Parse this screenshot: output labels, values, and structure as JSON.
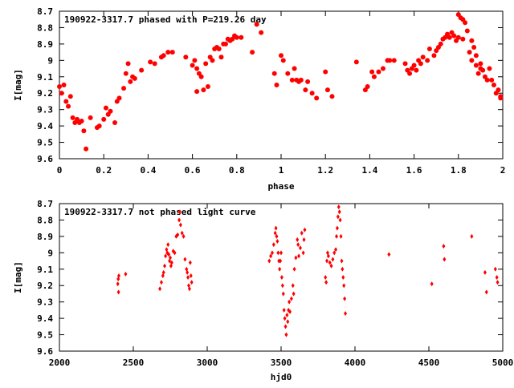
{
  "chart_data": [
    {
      "type": "scatter",
      "title": "190922-3317.7 phased with P=219.26 day",
      "xlabel": "phase",
      "ylabel": "I[mag]",
      "xlim": [
        0,
        2
      ],
      "ylim": [
        9.6,
        8.7
      ],
      "y_inverted": true,
      "xticks": [
        "0",
        "0.2",
        "0.4",
        "0.6",
        "0.8",
        "1",
        "1.2",
        "1.4",
        "1.6",
        "1.8",
        "2"
      ],
      "yticks": [
        "8.7",
        "8.8",
        "8.9",
        "9",
        "9.1",
        "9.2",
        "9.3",
        "9.4",
        "9.5",
        "9.6"
      ],
      "marker_color": "#ff0000",
      "points": [
        [
          0.0,
          9.16
        ],
        [
          0.01,
          9.2
        ],
        [
          0.02,
          9.15
        ],
        [
          0.03,
          9.25
        ],
        [
          0.04,
          9.28
        ],
        [
          0.05,
          9.22
        ],
        [
          0.06,
          9.35
        ],
        [
          0.07,
          9.38
        ],
        [
          0.08,
          9.36
        ],
        [
          0.09,
          9.38
        ],
        [
          0.1,
          9.37
        ],
        [
          0.11,
          9.43
        ],
        [
          0.12,
          9.54
        ],
        [
          0.14,
          9.35
        ],
        [
          0.17,
          9.41
        ],
        [
          0.18,
          9.4
        ],
        [
          0.2,
          9.36
        ],
        [
          0.21,
          9.29
        ],
        [
          0.22,
          9.33
        ],
        [
          0.23,
          9.31
        ],
        [
          0.25,
          9.38
        ],
        [
          0.26,
          9.25
        ],
        [
          0.27,
          9.23
        ],
        [
          0.29,
          9.17
        ],
        [
          0.3,
          9.08
        ],
        [
          0.31,
          9.02
        ],
        [
          0.32,
          9.13
        ],
        [
          0.33,
          9.1
        ],
        [
          0.34,
          9.11
        ],
        [
          0.37,
          9.06
        ],
        [
          0.41,
          9.01
        ],
        [
          0.43,
          9.02
        ],
        [
          0.46,
          8.98
        ],
        [
          0.47,
          8.97
        ],
        [
          0.49,
          8.95
        ],
        [
          0.51,
          8.95
        ],
        [
          0.57,
          8.98
        ],
        [
          0.6,
          9.03
        ],
        [
          0.61,
          9.0
        ],
        [
          0.62,
          9.05
        ],
        [
          0.63,
          9.08
        ],
        [
          0.64,
          9.1
        ],
        [
          0.62,
          9.19
        ],
        [
          0.65,
          9.18
        ],
        [
          0.66,
          9.02
        ],
        [
          0.67,
          9.16
        ],
        [
          0.68,
          8.98
        ],
        [
          0.69,
          9.0
        ],
        [
          0.7,
          8.93
        ],
        [
          0.71,
          8.92
        ],
        [
          0.72,
          8.93
        ],
        [
          0.73,
          8.98
        ],
        [
          0.74,
          8.9
        ],
        [
          0.75,
          8.9
        ],
        [
          0.76,
          8.87
        ],
        [
          0.77,
          8.88
        ],
        [
          0.78,
          8.87
        ],
        [
          0.79,
          8.85
        ],
        [
          0.8,
          8.86
        ],
        [
          0.82,
          8.86
        ],
        [
          0.87,
          8.95
        ],
        [
          0.89,
          8.78
        ],
        [
          0.91,
          8.83
        ],
        [
          0.97,
          9.08
        ],
        [
          0.98,
          9.15
        ],
        [
          1.0,
          8.97
        ],
        [
          1.01,
          9.0
        ],
        [
          1.03,
          9.08
        ],
        [
          1.05,
          9.12
        ],
        [
          1.06,
          9.05
        ],
        [
          1.07,
          9.12
        ],
        [
          1.08,
          9.13
        ],
        [
          1.09,
          9.12
        ],
        [
          1.11,
          9.18
        ],
        [
          1.12,
          9.13
        ],
        [
          1.14,
          9.2
        ],
        [
          1.16,
          9.23
        ],
        [
          1.2,
          9.07
        ],
        [
          1.21,
          9.18
        ],
        [
          1.23,
          9.22
        ],
        [
          1.34,
          9.01
        ],
        [
          1.38,
          9.18
        ],
        [
          1.39,
          9.16
        ],
        [
          1.41,
          9.07
        ],
        [
          1.42,
          9.1
        ],
        [
          1.44,
          9.07
        ],
        [
          1.46,
          9.05
        ],
        [
          1.48,
          9.0
        ],
        [
          1.49,
          9.0
        ],
        [
          1.51,
          9.0
        ],
        [
          1.56,
          9.02
        ],
        [
          1.57,
          9.06
        ],
        [
          1.58,
          9.08
        ],
        [
          1.59,
          9.05
        ],
        [
          1.6,
          9.03
        ],
        [
          1.61,
          9.06
        ],
        [
          1.62,
          9.0
        ],
        [
          1.63,
          9.02
        ],
        [
          1.64,
          8.98
        ],
        [
          1.66,
          9.0
        ],
        [
          1.67,
          8.93
        ],
        [
          1.69,
          8.97
        ],
        [
          1.7,
          8.94
        ],
        [
          1.71,
          8.92
        ],
        [
          1.72,
          8.9
        ],
        [
          1.73,
          8.87
        ],
        [
          1.74,
          8.86
        ],
        [
          1.75,
          8.84
        ],
        [
          1.76,
          8.86
        ],
        [
          1.77,
          8.83
        ],
        [
          1.78,
          8.85
        ],
        [
          1.79,
          8.88
        ],
        [
          1.8,
          8.72
        ],
        [
          1.81,
          8.74
        ],
        [
          1.82,
          8.75
        ],
        [
          1.83,
          8.77
        ],
        [
          1.84,
          8.82
        ],
        [
          1.8,
          8.86
        ],
        [
          1.82,
          8.87
        ],
        [
          1.85,
          8.95
        ],
        [
          1.86,
          8.88
        ],
        [
          1.86,
          9.0
        ],
        [
          1.87,
          8.92
        ],
        [
          1.88,
          9.03
        ],
        [
          1.88,
          8.97
        ],
        [
          1.89,
          9.08
        ],
        [
          1.9,
          9.02
        ],
        [
          1.9,
          9.05
        ],
        [
          1.91,
          9.06
        ],
        [
          1.92,
          9.1
        ],
        [
          1.93,
          9.12
        ],
        [
          1.94,
          9.05
        ],
        [
          1.95,
          9.12
        ],
        [
          1.96,
          9.15
        ],
        [
          1.97,
          9.2
        ],
        [
          1.98,
          9.18
        ],
        [
          1.99,
          9.22
        ],
        [
          1.99,
          9.23
        ]
      ]
    },
    {
      "type": "scatter",
      "title": "190922-3317.7 not phased light curve",
      "xlabel": "hjd0",
      "ylabel": "I[mag]",
      "xlim": [
        2000,
        5000
      ],
      "ylim": [
        9.6,
        8.7
      ],
      "y_inverted": true,
      "xticks": [
        "2000",
        "2500",
        "3000",
        "3500",
        "4000",
        "4500",
        "5000"
      ],
      "yticks": [
        "8.7",
        "8.8",
        "8.9",
        "9",
        "9.1",
        "9.2",
        "9.3",
        "9.4",
        "9.5",
        "9.6"
      ],
      "marker_color": "#ff0000",
      "points": [
        [
          2395,
          9.19
        ],
        [
          2398,
          9.16
        ],
        [
          2400,
          9.24
        ],
        [
          2402,
          9.14
        ],
        [
          2448,
          9.13
        ],
        [
          2680,
          9.22
        ],
        [
          2690,
          9.18
        ],
        [
          2700,
          9.14
        ],
        [
          2705,
          9.12
        ],
        [
          2712,
          9.08
        ],
        [
          2718,
          9.02
        ],
        [
          2725,
          8.98
        ],
        [
          2730,
          9.0
        ],
        [
          2735,
          8.95
        ],
        [
          2740,
          9.01
        ],
        [
          2745,
          9.05
        ],
        [
          2750,
          9.03
        ],
        [
          2755,
          9.08
        ],
        [
          2760,
          9.06
        ],
        [
          2770,
          8.99
        ],
        [
          2780,
          9.0
        ],
        [
          2790,
          8.9
        ],
        [
          2800,
          8.89
        ],
        [
          2810,
          8.8
        ],
        [
          2815,
          8.75
        ],
        [
          2820,
          8.83
        ],
        [
          2830,
          8.88
        ],
        [
          2840,
          8.9
        ],
        [
          2850,
          9.04
        ],
        [
          2860,
          9.1
        ],
        [
          2865,
          9.12
        ],
        [
          2870,
          9.15
        ],
        [
          2875,
          9.2
        ],
        [
          2880,
          9.22
        ],
        [
          2885,
          9.06
        ],
        [
          2890,
          9.14
        ],
        [
          2895,
          9.18
        ],
        [
          3420,
          9.05
        ],
        [
          3430,
          9.02
        ],
        [
          3440,
          9.0
        ],
        [
          3450,
          8.95
        ],
        [
          3460,
          8.88
        ],
        [
          3465,
          8.85
        ],
        [
          3470,
          8.9
        ],
        [
          3475,
          8.93
        ],
        [
          3480,
          9.0
        ],
        [
          3485,
          9.05
        ],
        [
          3490,
          9.1
        ],
        [
          3495,
          9.05
        ],
        [
          3500,
          9.0
        ],
        [
          3505,
          9.15
        ],
        [
          3510,
          9.2
        ],
        [
          3515,
          9.25
        ],
        [
          3520,
          9.35
        ],
        [
          3525,
          9.4
        ],
        [
          3530,
          9.45
        ],
        [
          3535,
          9.5
        ],
        [
          3540,
          9.38
        ],
        [
          3545,
          9.42
        ],
        [
          3550,
          9.35
        ],
        [
          3555,
          9.3
        ],
        [
          3560,
          9.36
        ],
        [
          3570,
          9.28
        ],
        [
          3580,
          9.2
        ],
        [
          3585,
          9.25
        ],
        [
          3590,
          9.1
        ],
        [
          3600,
          9.03
        ],
        [
          3610,
          8.92
        ],
        [
          3615,
          8.95
        ],
        [
          3620,
          9.02
        ],
        [
          3630,
          8.97
        ],
        [
          3640,
          8.88
        ],
        [
          3650,
          9.0
        ],
        [
          3655,
          8.92
        ],
        [
          3660,
          8.86
        ],
        [
          3800,
          9.15
        ],
        [
          3805,
          9.18
        ],
        [
          3810,
          9.05
        ],
        [
          3815,
          9.0
        ],
        [
          3820,
          9.02
        ],
        [
          3830,
          9.06
        ],
        [
          3840,
          9.08
        ],
        [
          3850,
          9.04
        ],
        [
          3860,
          9.0
        ],
        [
          3870,
          8.98
        ],
        [
          3875,
          8.9
        ],
        [
          3880,
          8.85
        ],
        [
          3885,
          8.78
        ],
        [
          3890,
          8.72
        ],
        [
          3895,
          8.75
        ],
        [
          3900,
          8.8
        ],
        [
          3905,
          8.9
        ],
        [
          3910,
          9.05
        ],
        [
          3915,
          9.1
        ],
        [
          3920,
          9.15
        ],
        [
          3925,
          9.2
        ],
        [
          3930,
          9.28
        ],
        [
          3935,
          9.37
        ],
        [
          4230,
          9.01
        ],
        [
          4520,
          9.19
        ],
        [
          4600,
          8.96
        ],
        [
          4605,
          9.04
        ],
        [
          4790,
          8.9
        ],
        [
          4880,
          9.12
        ],
        [
          4890,
          9.24
        ],
        [
          4950,
          9.1
        ],
        [
          4960,
          9.15
        ],
        [
          4965,
          9.18
        ]
      ]
    }
  ]
}
